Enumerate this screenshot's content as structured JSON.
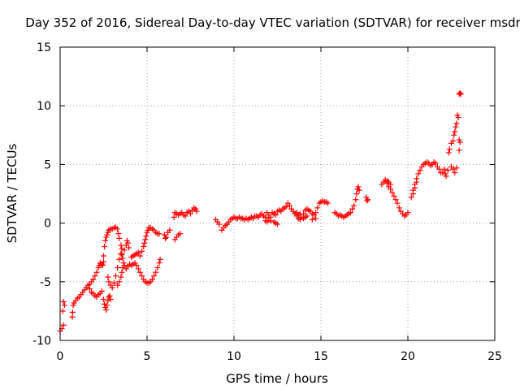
{
  "chart_data": {
    "type": "scatter",
    "title": "Day 352 of 2016, Sidereal Day-to-day VTEC variation (SDTVAR) for receiver msdr",
    "xlabel": "GPS time / hours",
    "ylabel": "SDTVAR / TECUs",
    "xlim": [
      0,
      25
    ],
    "ylim": [
      -10,
      15
    ],
    "xticks": [
      0,
      5,
      10,
      15,
      20,
      25
    ],
    "yticks": [
      -10,
      -5,
      0,
      5,
      10,
      15
    ],
    "grid": true,
    "marker": "plus",
    "color": "#ff0000",
    "series": [
      {
        "points": [
          [
            0.0,
            -9.2
          ],
          [
            0.1,
            -9.0
          ],
          [
            0.2,
            -8.7
          ],
          [
            0.15,
            -7.5
          ],
          [
            0.2,
            -6.7
          ],
          [
            0.25,
            -7.0
          ],
          [
            0.7,
            -8.0
          ],
          [
            0.72,
            -7.6
          ],
          [
            0.75,
            -7.0
          ],
          [
            0.8,
            -6.8
          ],
          [
            0.9,
            -6.6
          ],
          [
            1.0,
            -6.4
          ],
          [
            1.1,
            -6.3
          ],
          [
            1.2,
            -6.1
          ],
          [
            1.3,
            -5.9
          ],
          [
            1.4,
            -5.7
          ],
          [
            1.5,
            -5.5
          ],
          [
            1.6,
            -5.3
          ],
          [
            1.7,
            -5.2
          ],
          [
            1.8,
            -5.0
          ],
          [
            1.9,
            -4.8
          ],
          [
            2.0,
            -4.5
          ],
          [
            2.1,
            -4.2
          ],
          [
            1.7,
            -5.6
          ],
          [
            1.8,
            -5.9
          ],
          [
            1.9,
            -6.0
          ],
          [
            2.0,
            -6.2
          ],
          [
            2.1,
            -6.3
          ],
          [
            2.2,
            -6.1
          ],
          [
            2.3,
            -6.0
          ],
          [
            2.4,
            -5.8
          ],
          [
            2.5,
            -6.5
          ],
          [
            2.55,
            -6.9
          ],
          [
            2.6,
            -7.2
          ],
          [
            2.65,
            -7.4
          ],
          [
            2.7,
            -7.0
          ],
          [
            2.75,
            -6.6
          ],
          [
            2.8,
            -6.3
          ],
          [
            2.85,
            -6.2
          ],
          [
            2.9,
            -6.5
          ],
          [
            2.2,
            -3.8
          ],
          [
            2.25,
            -3.6
          ],
          [
            2.3,
            -3.4
          ],
          [
            2.35,
            -3.5
          ],
          [
            2.4,
            -3.5
          ],
          [
            2.45,
            -3.6
          ],
          [
            2.5,
            -3.3
          ],
          [
            2.5,
            -2.8
          ],
          [
            2.55,
            -2.0
          ],
          [
            2.6,
            -1.5
          ],
          [
            2.65,
            -1.2
          ],
          [
            2.7,
            -1.0
          ],
          [
            2.75,
            -0.8
          ],
          [
            2.8,
            -0.6
          ],
          [
            2.9,
            -0.5
          ],
          [
            3.0,
            -0.5
          ],
          [
            3.1,
            -0.4
          ],
          [
            3.2,
            -0.35
          ],
          [
            3.3,
            -0.5
          ],
          [
            3.35,
            -0.9
          ],
          [
            3.4,
            -1.3
          ],
          [
            3.5,
            -1.9
          ],
          [
            3.55,
            -2.2
          ],
          [
            3.5,
            -2.6
          ],
          [
            3.4,
            -3.1
          ],
          [
            3.3,
            -3.8
          ],
          [
            3.2,
            -4.5
          ],
          [
            3.1,
            -5.1
          ],
          [
            3.0,
            -5.5
          ],
          [
            2.9,
            -5.3
          ],
          [
            2.8,
            -5.0
          ],
          [
            2.75,
            -4.6
          ],
          [
            3.3,
            -5.3
          ],
          [
            3.4,
            -5.0
          ],
          [
            3.5,
            -4.6
          ],
          [
            3.55,
            -4.2
          ],
          [
            3.6,
            -3.8
          ],
          [
            3.65,
            -3.4
          ],
          [
            3.6,
            -3.0
          ],
          [
            3.55,
            -2.7
          ],
          [
            3.7,
            -2.3
          ],
          [
            3.8,
            -1.9
          ],
          [
            3.85,
            -1.5
          ],
          [
            3.9,
            -1.7
          ],
          [
            3.95,
            -2.1
          ],
          [
            3.7,
            -3.6
          ],
          [
            3.8,
            -3.9
          ],
          [
            3.9,
            -3.7
          ],
          [
            4.0,
            -3.5
          ],
          [
            4.1,
            -3.6
          ],
          [
            4.2,
            -3.5
          ],
          [
            4.3,
            -3.4
          ],
          [
            4.4,
            -3.6
          ],
          [
            4.5,
            -3.9
          ],
          [
            4.6,
            -4.2
          ],
          [
            4.7,
            -4.5
          ],
          [
            4.8,
            -4.8
          ],
          [
            4.9,
            -5.0
          ],
          [
            5.0,
            -5.1
          ],
          [
            5.1,
            -5.1
          ],
          [
            5.2,
            -5.0
          ],
          [
            5.3,
            -4.8
          ],
          [
            5.4,
            -4.5
          ],
          [
            5.5,
            -4.2
          ],
          [
            5.6,
            -3.8
          ],
          [
            5.7,
            -3.4
          ],
          [
            5.75,
            -3.1
          ],
          [
            4.1,
            -2.9
          ],
          [
            4.2,
            -2.8
          ],
          [
            4.3,
            -2.7
          ],
          [
            4.4,
            -2.6
          ],
          [
            4.5,
            -2.5
          ],
          [
            4.6,
            -2.8
          ],
          [
            4.7,
            -2.4
          ],
          [
            4.8,
            -2.0
          ],
          [
            4.85,
            -1.7
          ],
          [
            4.9,
            -1.4
          ],
          [
            4.95,
            -1.1
          ],
          [
            5.0,
            -0.8
          ],
          [
            5.05,
            -0.6
          ],
          [
            5.1,
            -0.4
          ],
          [
            5.2,
            -0.4
          ],
          [
            5.3,
            -0.5
          ],
          [
            5.4,
            -0.6
          ],
          [
            5.5,
            -0.8
          ],
          [
            5.6,
            -0.9
          ],
          [
            5.7,
            -0.9
          ],
          [
            6.0,
            -1.0
          ],
          [
            6.05,
            -1.3
          ],
          [
            6.1,
            -1.2
          ],
          [
            6.2,
            -0.8
          ],
          [
            6.3,
            -0.6
          ],
          [
            6.6,
            -1.4
          ],
          [
            6.7,
            -1.2
          ],
          [
            6.8,
            -1.0
          ],
          [
            6.9,
            -0.9
          ],
          [
            6.55,
            0.5
          ],
          [
            6.6,
            0.9
          ],
          [
            6.7,
            0.8
          ],
          [
            6.8,
            0.7
          ],
          [
            6.9,
            0.8
          ],
          [
            7.0,
            0.9
          ],
          [
            7.1,
            0.7
          ],
          [
            7.2,
            0.6
          ],
          [
            7.3,
            0.9
          ],
          [
            7.4,
            1.0
          ],
          [
            7.5,
            0.8
          ],
          [
            7.6,
            1.1
          ],
          [
            7.7,
            1.3
          ],
          [
            7.8,
            1.2
          ],
          [
            7.85,
            1.0
          ],
          [
            8.95,
            0.3
          ],
          [
            9.05,
            0.1
          ],
          [
            9.15,
            -0.1
          ],
          [
            9.3,
            -0.6
          ],
          [
            9.4,
            -0.4
          ],
          [
            9.5,
            -0.2
          ],
          [
            9.6,
            -0.1
          ],
          [
            9.7,
            0.1
          ],
          [
            9.8,
            0.3
          ],
          [
            9.9,
            0.4
          ],
          [
            10.0,
            0.5
          ],
          [
            10.1,
            0.4
          ],
          [
            10.2,
            0.4
          ],
          [
            10.3,
            0.5
          ],
          [
            10.4,
            0.4
          ],
          [
            10.5,
            0.4
          ],
          [
            10.6,
            0.3
          ],
          [
            10.7,
            0.4
          ],
          [
            10.8,
            0.3
          ],
          [
            10.9,
            0.4
          ],
          [
            11.0,
            0.5
          ],
          [
            11.1,
            0.4
          ],
          [
            11.2,
            0.6
          ],
          [
            11.3,
            0.6
          ],
          [
            11.4,
            0.5
          ],
          [
            11.5,
            0.7
          ],
          [
            11.6,
            0.8
          ],
          [
            11.7,
            0.6
          ],
          [
            11.8,
            0.5
          ],
          [
            11.9,
            0.9
          ],
          [
            12.0,
            0.7
          ],
          [
            12.1,
            0.5
          ],
          [
            12.2,
            0.9
          ],
          [
            12.3,
            0.8
          ],
          [
            12.4,
            0.7
          ],
          [
            12.5,
            1.0
          ],
          [
            12.6,
            1.1
          ],
          [
            12.7,
            1.0
          ],
          [
            12.8,
            1.2
          ],
          [
            12.9,
            1.3
          ],
          [
            13.0,
            1.4
          ],
          [
            11.8,
            0.2
          ],
          [
            11.9,
            0.1
          ],
          [
            12.0,
            0.4
          ],
          [
            12.1,
            0.2
          ],
          [
            12.3,
            0.1
          ],
          [
            12.4,
            0.0
          ],
          [
            12.5,
            -0.1
          ],
          [
            13.1,
            1.7
          ],
          [
            13.2,
            1.5
          ],
          [
            13.3,
            1.2
          ],
          [
            13.4,
            1.0
          ],
          [
            13.5,
            0.8
          ],
          [
            13.6,
            0.6
          ],
          [
            13.7,
            0.4
          ],
          [
            13.8,
            0.3
          ],
          [
            13.9,
            0.5
          ],
          [
            14.0,
            0.8
          ],
          [
            14.1,
            1.1
          ],
          [
            14.2,
            1.2
          ],
          [
            14.3,
            1.1
          ],
          [
            14.4,
            1.0
          ],
          [
            14.5,
            0.8
          ],
          [
            14.6,
            0.7
          ],
          [
            14.7,
            0.9
          ],
          [
            14.8,
            1.3
          ],
          [
            14.9,
            1.7
          ],
          [
            15.0,
            1.8
          ],
          [
            15.1,
            1.9
          ],
          [
            15.2,
            1.8
          ],
          [
            15.3,
            1.8
          ],
          [
            15.4,
            1.7
          ],
          [
            13.6,
            0.9
          ],
          [
            13.7,
            0.7
          ],
          [
            13.8,
            0.8
          ],
          [
            14.0,
            0.4
          ],
          [
            14.1,
            0.5
          ],
          [
            14.2,
            0.6
          ],
          [
            14.5,
            0.3
          ],
          [
            14.7,
            0.4
          ],
          [
            15.8,
            0.9
          ],
          [
            15.9,
            0.8
          ],
          [
            16.0,
            0.6
          ],
          [
            16.1,
            0.7
          ],
          [
            16.2,
            0.6
          ],
          [
            16.3,
            0.5
          ],
          [
            16.4,
            0.6
          ],
          [
            16.5,
            0.7
          ],
          [
            16.6,
            0.8
          ],
          [
            16.7,
            0.9
          ],
          [
            16.8,
            1.2
          ],
          [
            16.9,
            1.5
          ],
          [
            17.0,
            2.0
          ],
          [
            17.05,
            2.5
          ],
          [
            17.1,
            2.9
          ],
          [
            17.15,
            3.1
          ],
          [
            17.2,
            2.8
          ],
          [
            17.6,
            2.2
          ],
          [
            17.65,
            1.9
          ],
          [
            17.7,
            2.0
          ],
          [
            18.5,
            3.3
          ],
          [
            18.6,
            3.5
          ],
          [
            18.7,
            3.7
          ],
          [
            18.8,
            3.4
          ],
          [
            18.9,
            3.1
          ],
          [
            19.0,
            2.9
          ],
          [
            19.1,
            2.6
          ],
          [
            19.2,
            2.3
          ],
          [
            19.3,
            2.0
          ],
          [
            19.4,
            1.7
          ],
          [
            19.5,
            1.3
          ],
          [
            19.6,
            1.0
          ],
          [
            19.7,
            0.8
          ],
          [
            19.8,
            0.6
          ],
          [
            19.9,
            0.7
          ],
          [
            20.0,
            0.9
          ],
          [
            18.8,
            3.6
          ],
          [
            18.9,
            3.5
          ],
          [
            19.0,
            3.3
          ],
          [
            20.2,
            2.2
          ],
          [
            20.3,
            2.8
          ],
          [
            20.4,
            3.3
          ],
          [
            20.5,
            3.8
          ],
          [
            20.6,
            4.2
          ],
          [
            20.7,
            4.5
          ],
          [
            20.8,
            4.8
          ],
          [
            20.9,
            5.0
          ],
          [
            21.0,
            5.1
          ],
          [
            21.1,
            5.2
          ],
          [
            21.2,
            5.1
          ],
          [
            21.3,
            4.9
          ],
          [
            21.4,
            5.0
          ],
          [
            21.5,
            5.2
          ],
          [
            21.6,
            5.1
          ],
          [
            21.7,
            4.8
          ],
          [
            21.8,
            4.6
          ],
          [
            21.9,
            4.3
          ],
          [
            20.3,
            2.5
          ],
          [
            20.4,
            3.0
          ],
          [
            20.5,
            3.5
          ],
          [
            22.0,
            4.3
          ],
          [
            22.1,
            4.6
          ],
          [
            22.15,
            4.2
          ],
          [
            22.2,
            4.0
          ],
          [
            22.3,
            4.5
          ],
          [
            22.35,
            6.0
          ],
          [
            22.4,
            6.3
          ],
          [
            22.5,
            6.8
          ],
          [
            22.6,
            7.0
          ],
          [
            22.65,
            7.5
          ],
          [
            22.7,
            7.8
          ],
          [
            22.75,
            8.2
          ],
          [
            22.8,
            8.5
          ],
          [
            22.85,
            9.2
          ],
          [
            22.9,
            9.0
          ],
          [
            22.5,
            4.8
          ],
          [
            22.6,
            4.6
          ],
          [
            22.7,
            4.3
          ],
          [
            22.8,
            4.7
          ],
          [
            22.95,
            7.1
          ],
          [
            23.0,
            6.9
          ],
          [
            22.95,
            11.0
          ],
          [
            23.0,
            11.1
          ],
          [
            23.05,
            11.0
          ],
          [
            22.95,
            6.2
          ]
        ]
      }
    ]
  }
}
